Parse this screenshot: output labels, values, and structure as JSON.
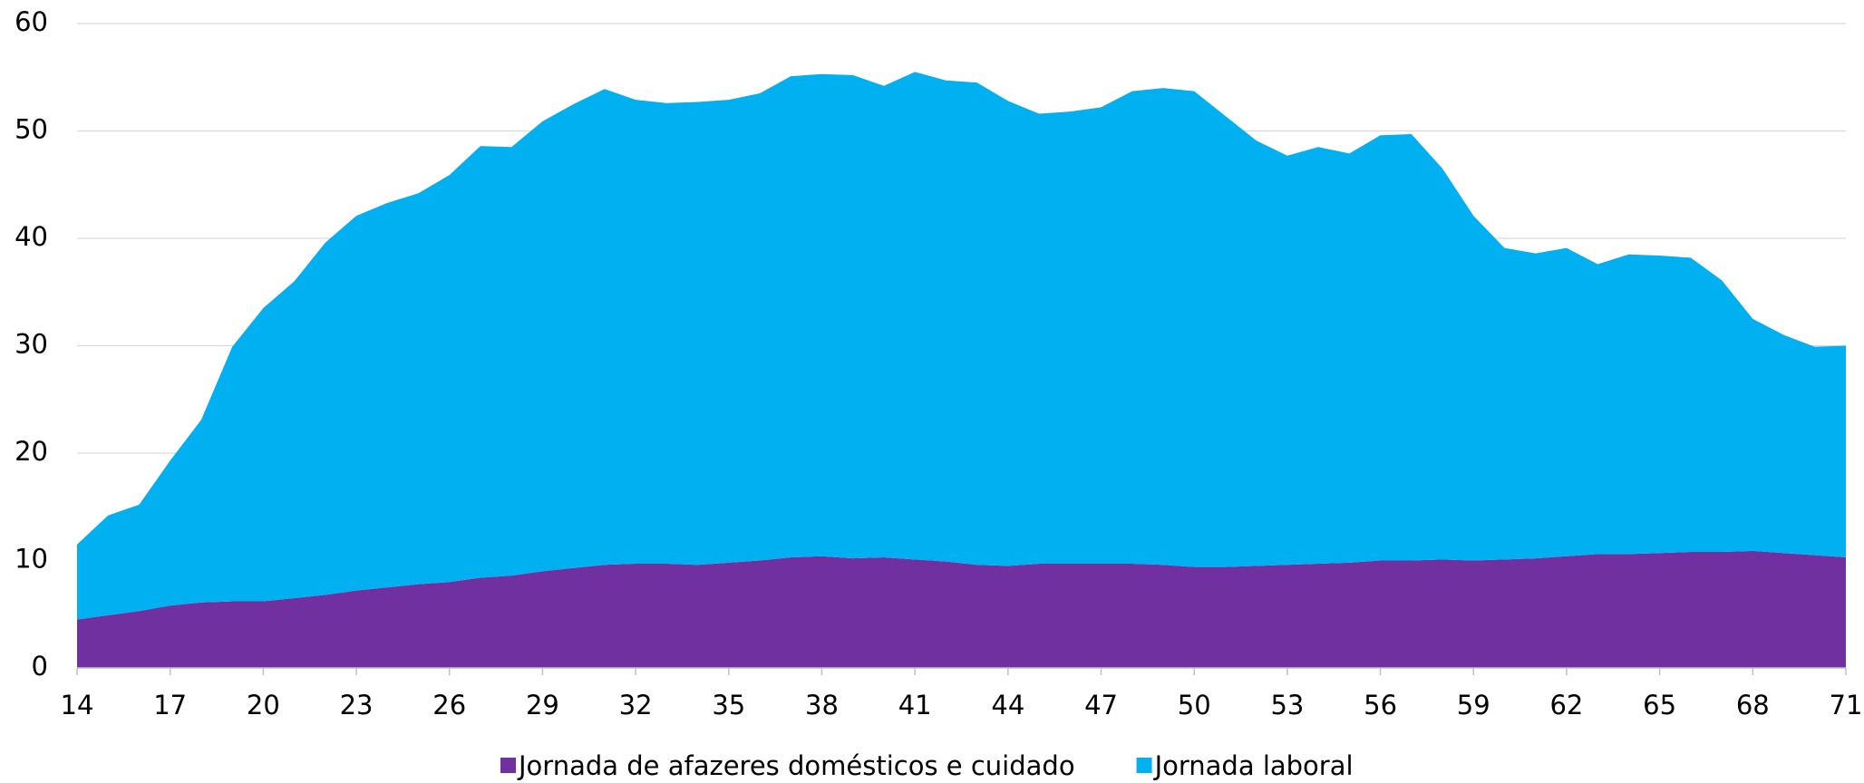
{
  "chart_data": {
    "type": "stacked-area",
    "x": [
      14,
      15,
      16,
      17,
      18,
      19,
      20,
      21,
      22,
      23,
      24,
      25,
      26,
      27,
      28,
      29,
      30,
      31,
      32,
      33,
      34,
      35,
      36,
      37,
      38,
      39,
      40,
      41,
      42,
      43,
      44,
      45,
      46,
      47,
      48,
      49,
      50,
      51,
      52,
      53,
      54,
      55,
      56,
      57,
      58,
      59,
      60,
      61,
      62,
      63,
      64,
      65,
      66,
      67,
      68,
      69,
      70,
      71
    ],
    "series": [
      {
        "name": "Jornada de afazeres domésticos e cuidado",
        "color": "#7030a0",
        "values": [
          4.5,
          4.9,
          5.3,
          5.8,
          6.1,
          6.2,
          6.2,
          6.5,
          6.8,
          7.2,
          7.5,
          7.8,
          8.0,
          8.4,
          8.6,
          9.0,
          9.3,
          9.6,
          9.7,
          9.7,
          9.6,
          9.8,
          10.0,
          10.3,
          10.4,
          10.2,
          10.3,
          10.1,
          9.9,
          9.6,
          9.5,
          9.7,
          9.7,
          9.7,
          9.7,
          9.6,
          9.4,
          9.4,
          9.5,
          9.6,
          9.7,
          9.8,
          10.0,
          10.0,
          10.1,
          10.0,
          10.1,
          10.2,
          10.4,
          10.6,
          10.6,
          10.7,
          10.8,
          10.8,
          10.9,
          10.7,
          10.5,
          10.3
        ]
      },
      {
        "name": "Jornada laboral",
        "color": "#00b0f0",
        "values": [
          7.0,
          9.3,
          9.9,
          13.5,
          17.0,
          23.7,
          27.3,
          29.5,
          32.8,
          34.9,
          35.8,
          36.4,
          37.9,
          40.2,
          39.9,
          41.9,
          43.2,
          44.3,
          43.2,
          42.9,
          43.1,
          43.1,
          43.5,
          44.8,
          44.9,
          45.0,
          43.9,
          45.4,
          44.8,
          44.9,
          43.3,
          41.9,
          42.1,
          42.5,
          44.0,
          44.4,
          44.3,
          42.0,
          39.6,
          38.1,
          38.8,
          38.1,
          39.6,
          39.7,
          36.4,
          32.1,
          29.0,
          28.4,
          28.7,
          27.0,
          27.9,
          27.7,
          27.4,
          25.3,
          21.6,
          20.3,
          19.4,
          19.7
        ]
      }
    ],
    "xlim": [
      14,
      71
    ],
    "xticks": [
      14,
      17,
      20,
      23,
      26,
      29,
      32,
      35,
      38,
      41,
      44,
      47,
      50,
      53,
      56,
      59,
      62,
      65,
      68,
      71
    ],
    "ylim": [
      0,
      60
    ],
    "yticks": [
      0,
      10,
      20,
      30,
      40,
      50,
      60
    ],
    "grid": true,
    "legend": "bottom"
  }
}
